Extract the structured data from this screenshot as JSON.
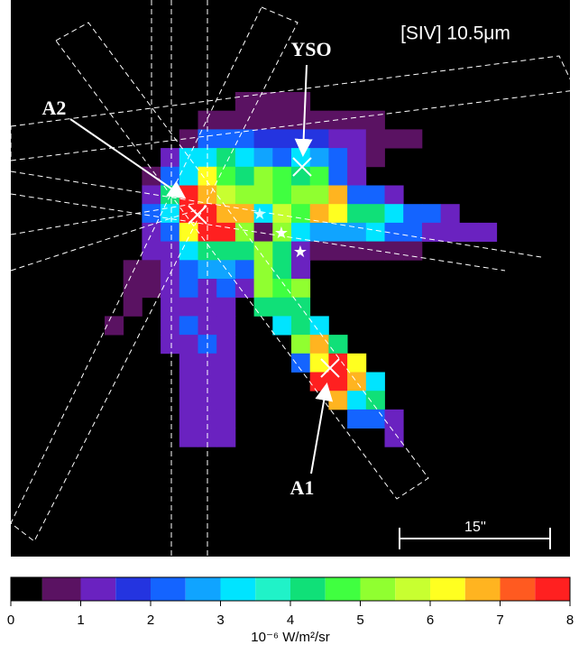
{
  "chart_data": {
    "type": "heatmap",
    "title": "[SIV] 10.5μm",
    "annotations": {
      "yso": "YSO",
      "a2": "A2",
      "a1": "A1",
      "scale": "15''"
    },
    "image": {
      "values": [
        [
          null,
          null,
          null,
          null,
          null,
          null,
          null,
          0.7,
          0.7,
          0.7,
          0.7,
          null,
          null,
          null,
          null,
          null,
          null,
          null,
          null,
          null,
          null
        ],
        [
          null,
          null,
          null,
          null,
          null,
          0.7,
          0.7,
          0.7,
          0.7,
          0.7,
          0.7,
          0.7,
          0.7,
          0.7,
          0.7,
          null,
          null,
          null,
          null,
          null,
          null
        ],
        [
          null,
          null,
          null,
          null,
          0.7,
          2.2,
          2.2,
          2.2,
          1.7,
          1.7,
          1.7,
          1.7,
          1.2,
          1.2,
          0.7,
          0.7,
          0.7,
          null,
          null,
          null,
          null
        ],
        [
          null,
          null,
          null,
          1.2,
          3.2,
          3.2,
          4.2,
          3.2,
          2.7,
          2.2,
          3.2,
          2.7,
          2.2,
          1.2,
          0.7,
          null,
          null,
          null,
          null,
          null,
          null
        ],
        [
          null,
          null,
          0.7,
          2.2,
          3.2,
          6.2,
          4.7,
          4.2,
          5.2,
          4.7,
          4.2,
          4.7,
          2.2,
          1.2,
          null,
          null,
          null,
          null,
          null,
          null,
          null
        ],
        [
          null,
          null,
          1.2,
          4.2,
          7.7,
          6.7,
          5.7,
          5.2,
          5.2,
          4.7,
          5.2,
          5.2,
          6.7,
          2.2,
          2.2,
          1.2,
          null,
          null,
          null,
          null,
          null
        ],
        [
          null,
          null,
          2.2,
          3.2,
          7.7,
          7.7,
          6.7,
          6.7,
          3.2,
          5.7,
          4.7,
          6.7,
          6.2,
          4.2,
          4.2,
          3.2,
          2.2,
          2.2,
          1.2,
          null,
          null
        ],
        [
          null,
          null,
          1.2,
          2.2,
          6.2,
          7.7,
          7.7,
          5.2,
          0.7,
          5.2,
          3.2,
          2.7,
          2.7,
          2.7,
          3.2,
          2.2,
          2.2,
          1.2,
          1.2,
          1.2,
          1.2
        ],
        [
          null,
          null,
          1.2,
          1.2,
          3.2,
          4.2,
          4.2,
          4.2,
          5.2,
          4.2,
          1.2,
          0.7,
          0.7,
          0.7,
          0.7,
          0.7,
          0.7,
          null,
          null,
          null,
          null
        ],
        [
          null,
          0.7,
          0.7,
          1.2,
          2.2,
          2.7,
          2.7,
          2.2,
          5.2,
          4.2,
          1.2,
          null,
          null,
          null,
          null,
          null,
          null,
          null,
          null,
          null,
          null
        ],
        [
          null,
          0.7,
          0.7,
          1.2,
          2.2,
          1.2,
          2.2,
          1.2,
          5.2,
          4.7,
          5.2,
          null,
          null,
          null,
          null,
          null,
          null,
          null,
          null,
          null,
          null
        ],
        [
          null,
          0.7,
          null,
          1.2,
          1.2,
          1.2,
          1.2,
          null,
          4.2,
          4.2,
          4.2,
          null,
          null,
          null,
          null,
          null,
          null,
          null,
          null,
          null,
          null
        ],
        [
          0.7,
          null,
          null,
          1.2,
          2.2,
          1.2,
          1.2,
          null,
          null,
          3.2,
          4.2,
          3.2,
          null,
          null,
          null,
          null,
          null,
          null,
          null,
          null,
          null
        ],
        [
          null,
          null,
          null,
          1.2,
          1.2,
          2.2,
          1.2,
          null,
          null,
          null,
          5.2,
          6.7,
          4.2,
          null,
          null,
          null,
          null,
          null,
          null,
          null,
          null
        ],
        [
          null,
          null,
          null,
          null,
          1.2,
          1.2,
          1.2,
          null,
          null,
          null,
          2.2,
          6.2,
          7.7,
          6.2,
          null,
          null,
          null,
          null,
          null,
          null,
          null
        ],
        [
          null,
          null,
          null,
          null,
          1.2,
          1.2,
          1.2,
          null,
          null,
          null,
          null,
          7.7,
          7.7,
          6.7,
          3.2,
          null,
          null,
          null,
          null,
          null,
          null
        ],
        [
          null,
          null,
          null,
          null,
          1.2,
          1.2,
          1.2,
          null,
          null,
          null,
          null,
          null,
          6.7,
          3.2,
          4.2,
          null,
          null,
          null,
          null,
          null,
          null
        ],
        [
          null,
          null,
          null,
          null,
          1.2,
          1.2,
          1.2,
          null,
          null,
          null,
          null,
          null,
          null,
          2.2,
          2.2,
          1.2,
          null,
          null,
          null,
          null,
          null
        ],
        [
          null,
          null,
          null,
          null,
          1.2,
          1.2,
          1.2,
          null,
          null,
          null,
          null,
          null,
          null,
          null,
          null,
          1.2,
          null,
          null,
          null,
          null,
          null
        ]
      ]
    },
    "colorbar": {
      "label": "10⁻⁶ W/m²/sr",
      "lim": [
        0,
        8
      ],
      "ticks": [
        0,
        1,
        2,
        3,
        4,
        5,
        6,
        7,
        8
      ],
      "bounds": [
        0,
        0.45,
        1,
        1.5,
        2,
        2.5,
        3,
        3.5,
        4,
        4.5,
        5,
        5.5,
        6,
        6.5,
        7,
        7.5,
        8
      ],
      "colors": [
        "#000000",
        "#5a1262",
        "#6a22c0",
        "#2434e0",
        "#1464ff",
        "#10a4ff",
        "#00e4ff",
        "#20f2c8",
        "#10e078",
        "#40ff40",
        "#90ff30",
        "#c8ff30",
        "#ffff20",
        "#ffb420",
        "#ff5a20",
        "#ff2020"
      ]
    }
  }
}
